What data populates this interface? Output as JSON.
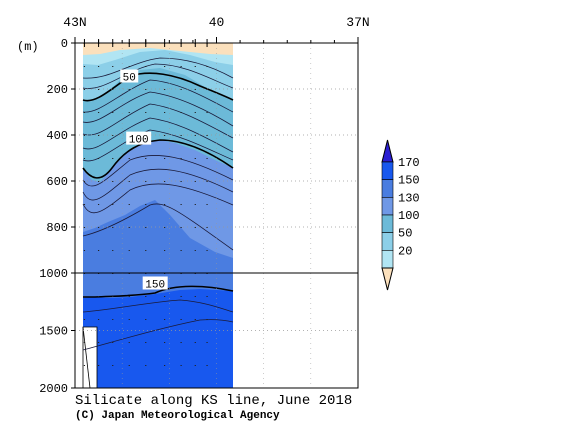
{
  "chart_data": {
    "type": "heatmap",
    "title": "Silicate along KS line, June 2018",
    "credit": "(C) Japan Meteorological Agency",
    "ylabel": "(m)",
    "x_ticks": [
      "43N",
      "40",
      "37N"
    ],
    "x_range": [
      43,
      37
    ],
    "x_data_extent": [
      42.8,
      40.2
    ],
    "y_ticks": [
      "0",
      "200",
      "400",
      "600",
      "800",
      "1000",
      "1500",
      "2000"
    ],
    "y_range": [
      0,
      2000
    ],
    "y_axis_break_at": 1000,
    "grid": "dotted",
    "contour_labels": [
      {
        "text": "50",
        "x": 41.85,
        "depth": 150
      },
      {
        "text": "100",
        "x": 41.65,
        "depth": 420
      },
      {
        "text": "150",
        "x": 41.3,
        "depth": 1100
      }
    ],
    "colorbar": {
      "labels": [
        "20",
        "50",
        "100",
        "130",
        "150",
        "170"
      ],
      "bounds": [
        0,
        20,
        50,
        100,
        130,
        150,
        170,
        200
      ],
      "colors": [
        "#fbe0bc",
        "#b1e5f3",
        "#8ccfe8",
        "#6cbad8",
        "#6f98e6",
        "#4a7de0",
        "#1858ee",
        "#2b1fd2"
      ]
    },
    "stations": [
      42.8,
      42.5,
      42.2,
      41.85,
      41.5,
      41.1,
      40.75,
      40.45,
      40.2
    ]
  }
}
